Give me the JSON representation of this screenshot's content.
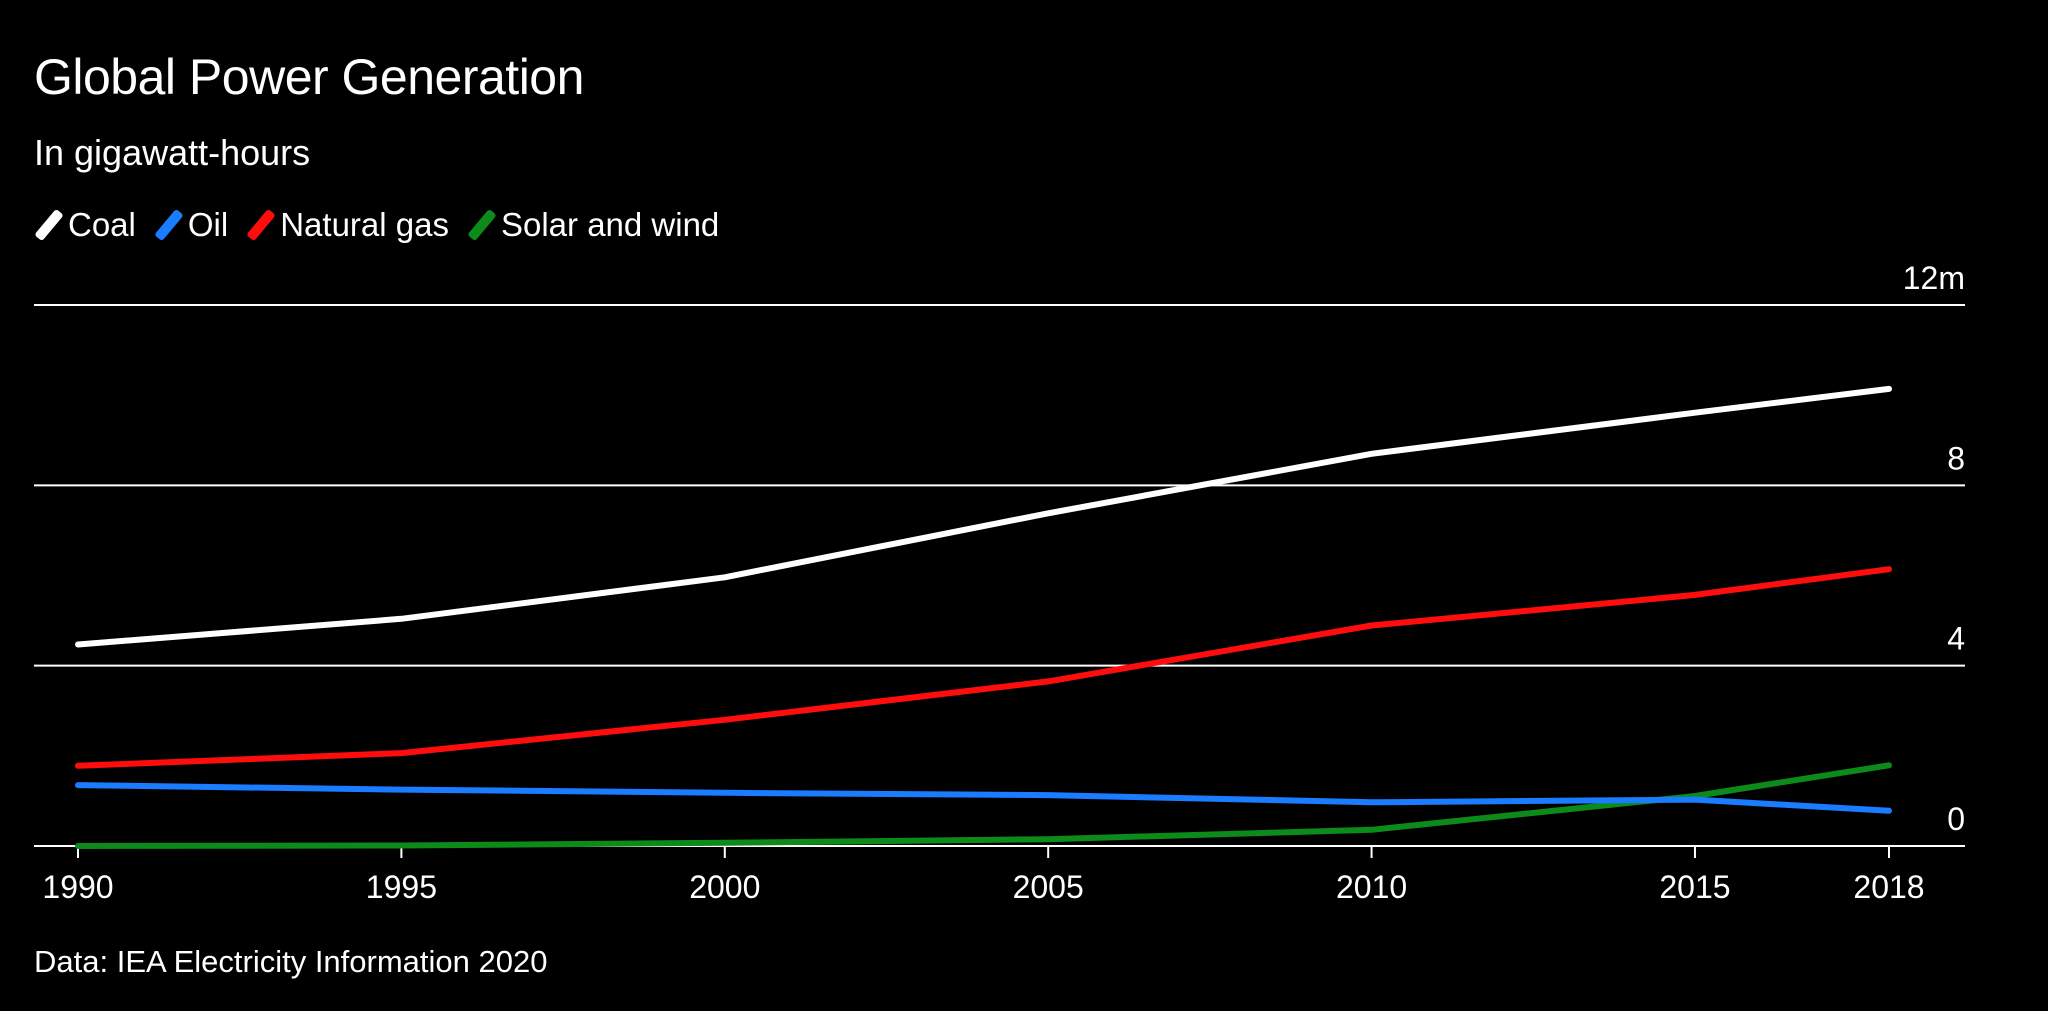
{
  "header": {
    "title": "Global Power Generation",
    "subtitle": "In gigawatt-hours"
  },
  "legend": [
    {
      "label": "Coal",
      "color": "#ffffff"
    },
    {
      "label": "Oil",
      "color": "#1a7cff"
    },
    {
      "label": "Natural gas",
      "color": "#ff0d0d"
    },
    {
      "label": "Solar and wind",
      "color": "#0c8a1a"
    }
  ],
  "source": "Data: IEA Electricity Information 2020",
  "chart_data": {
    "type": "line",
    "title": "Global Power Generation",
    "subtitle": "In gigawatt-hours",
    "xlabel": "",
    "ylabel": "",
    "x": [
      1990,
      1995,
      2000,
      2005,
      2010,
      2015,
      2018
    ],
    "x_tick_labels": [
      "1990",
      "1995",
      "2000",
      "2005",
      "2010",
      "2015",
      "2018"
    ],
    "xlim": [
      1990,
      2018
    ],
    "ylim": [
      0,
      12
    ],
    "y_ticks": [
      0,
      4,
      8,
      12
    ],
    "y_tick_labels": [
      "0",
      "4",
      "8",
      "12m"
    ],
    "y_axis_position": "right",
    "grid": true,
    "legend_position": "top-left",
    "series": [
      {
        "name": "Coal",
        "color": "#ffffff",
        "values": [
          4.47,
          5.04,
          5.96,
          7.38,
          8.7,
          9.61,
          10.14
        ]
      },
      {
        "name": "Oil",
        "color": "#1a7cff",
        "values": [
          1.35,
          1.25,
          1.18,
          1.13,
          0.97,
          1.03,
          0.78
        ]
      },
      {
        "name": "Natural gas",
        "color": "#ff0d0d",
        "values": [
          1.78,
          2.06,
          2.8,
          3.65,
          4.89,
          5.57,
          6.14
        ]
      },
      {
        "name": "Solar and wind",
        "color": "#0c8a1a",
        "values": [
          0.0,
          0.01,
          0.07,
          0.15,
          0.36,
          1.11,
          1.79
        ]
      }
    ],
    "source": "Data: IEA Electricity Information 2020"
  }
}
